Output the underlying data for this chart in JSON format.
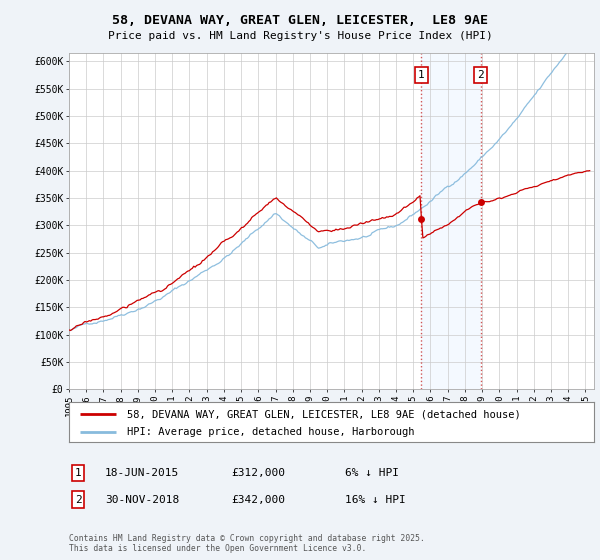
{
  "title1": "58, DEVANA WAY, GREAT GLEN, LEICESTER,  LE8 9AE",
  "title2": "Price paid vs. HM Land Registry's House Price Index (HPI)",
  "line1_label": "58, DEVANA WAY, GREAT GLEN, LEICESTER, LE8 9AE (detached house)",
  "line2_label": "HPI: Average price, detached house, Harborough",
  "line1_color": "#cc0000",
  "line2_color": "#88bbdd",
  "purchase1_date": 2015.46,
  "purchase1_price": 312000,
  "purchase1_label": "18-JUN-2015",
  "purchase1_text": "£312,000",
  "purchase1_hpi": "6% ↓ HPI",
  "purchase2_date": 2018.92,
  "purchase2_price": 342000,
  "purchase2_label": "30-NOV-2018",
  "purchase2_text": "£342,000",
  "purchase2_hpi": "16% ↓ HPI",
  "footer": "Contains HM Land Registry data © Crown copyright and database right 2025.\nThis data is licensed under the Open Government Licence v3.0.",
  "background_color": "#eff3f8",
  "plot_bg_color": "#ffffff",
  "shade_color": "#ddeeff",
  "ylim": [
    0,
    600000
  ],
  "xlim_start": 1995.0,
  "xlim_end": 2025.5
}
